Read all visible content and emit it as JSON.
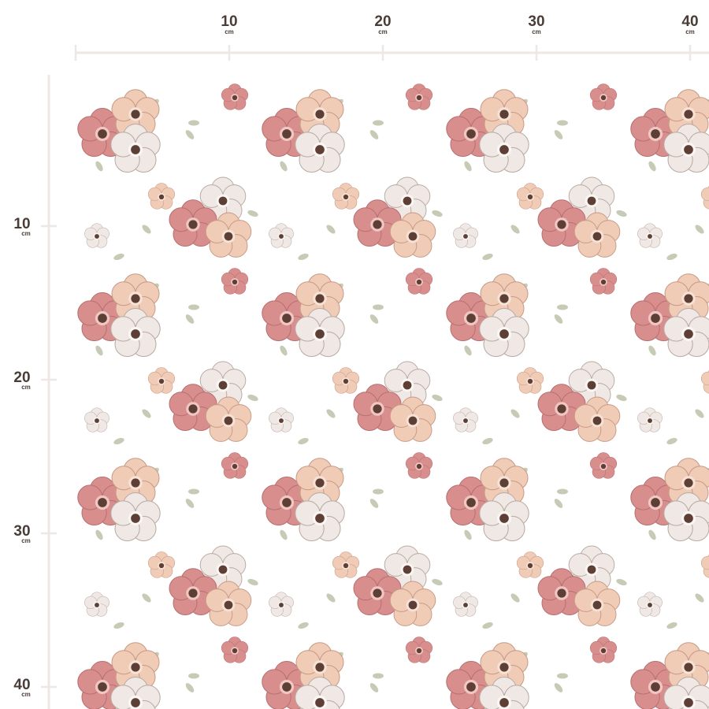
{
  "rulers": {
    "unit": "cm",
    "top": {
      "ticks": [
        10,
        20,
        30,
        40
      ]
    },
    "left": {
      "ticks": [
        10,
        20,
        30,
        40
      ]
    }
  }
}
